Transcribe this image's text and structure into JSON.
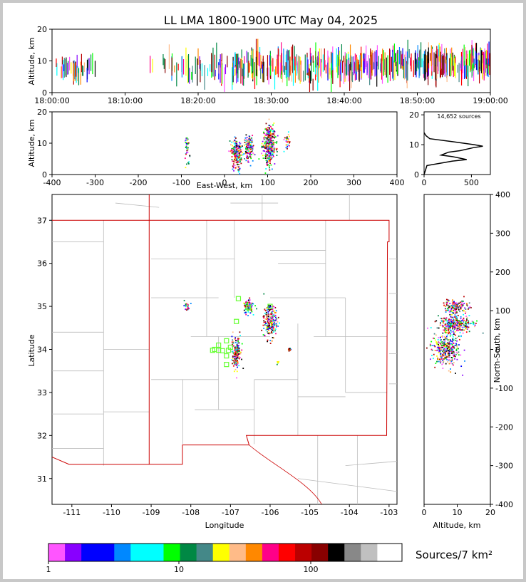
{
  "title": "LL LMA 1800-1900 UTC May 04, 2025",
  "chart_data": [
    {
      "id": "altitude-time",
      "type": "scatter",
      "ylabel": "Altitude, km",
      "ylim": [
        0,
        20
      ],
      "yticks": [
        "0",
        "10",
        "20"
      ],
      "xticks": [
        "18:00:00",
        "18:10:00",
        "18:20:00",
        "18:30:00",
        "18:40:00",
        "18:50:00",
        "19:00:00"
      ],
      "x_minutes_range": [
        0,
        60
      ],
      "activity_bands": [
        {
          "x_start": 0,
          "x_end": 6,
          "density": 0.5,
          "alt_center": 7.5,
          "alt_spread": 2.2
        },
        {
          "x_start": 13,
          "x_end": 15.5,
          "density": 0.15,
          "alt_center": 9,
          "alt_spread": 1.5
        },
        {
          "x_start": 16,
          "x_end": 25,
          "density": 0.4,
          "alt_center": 7.5,
          "alt_spread": 3
        },
        {
          "x_start": 25,
          "x_end": 42,
          "density": 0.9,
          "alt_center": 8.5,
          "alt_spread": 3
        },
        {
          "x_start": 42,
          "x_end": 60,
          "density": 1.0,
          "alt_center": 9.0,
          "alt_spread": 2.8
        }
      ]
    },
    {
      "id": "altitude-eastwest",
      "type": "scatter",
      "xlabel": "East-West, km",
      "ylabel": "Altitude, km",
      "xlim": [
        -400,
        400
      ],
      "ylim": [
        0,
        20
      ],
      "xticks": [
        "-400",
        "-300",
        "-200",
        "-100",
        "0",
        "100",
        "200",
        "300",
        "400"
      ],
      "yticks": [
        "0",
        "10",
        "20"
      ],
      "clusters": [
        {
          "x": -87,
          "y": 9,
          "sx": 3,
          "sy": 2,
          "n": 40
        },
        {
          "x": 28,
          "y": 6.5,
          "sx": 6,
          "sy": 2.5,
          "n": 220
        },
        {
          "x": 57,
          "y": 8.5,
          "sx": 5,
          "sy": 2.0,
          "n": 140
        },
        {
          "x": 103,
          "y": 9.5,
          "sx": 7,
          "sy": 3.0,
          "n": 360
        },
        {
          "x": 145,
          "y": 10,
          "sx": 3,
          "sy": 1.5,
          "n": 30
        }
      ]
    },
    {
      "id": "altitude-histogram",
      "type": "line",
      "annotation": "14,652 sources",
      "xlim": [
        0,
        700
      ],
      "ylim": [
        0,
        21
      ],
      "xticks": [
        "0",
        "500"
      ],
      "yticks": [
        "0",
        "10",
        "20"
      ],
      "points": [
        [
          0,
          0
        ],
        [
          30,
          3
        ],
        [
          210,
          4
        ],
        [
          300,
          4.5
        ],
        [
          450,
          5
        ],
        [
          300,
          6
        ],
        [
          180,
          6.5
        ],
        [
          260,
          7.5
        ],
        [
          380,
          8
        ],
        [
          520,
          9
        ],
        [
          620,
          9.5
        ],
        [
          530,
          10
        ],
        [
          300,
          11
        ],
        [
          60,
          12
        ],
        [
          20,
          13
        ],
        [
          0,
          14
        ]
      ]
    },
    {
      "id": "plan-view-map",
      "type": "scatter",
      "xlabel": "Longitude",
      "ylabel": "Latitude",
      "xlim": [
        -111.5,
        -102.8
      ],
      "ylim": [
        30.4,
        37.6
      ],
      "xticks": [
        "-111",
        "-110",
        "-109",
        "-108",
        "-107",
        "-106",
        "-105",
        "-104",
        "-103"
      ],
      "yticks": [
        "31",
        "32",
        "33",
        "34",
        "35",
        "36",
        "37"
      ],
      "clusters": [
        {
          "lon": -108.1,
          "lat": 35.0,
          "slon": 0.04,
          "slat": 0.05,
          "n": 25
        },
        {
          "lon": -106.85,
          "lat": 33.95,
          "slon": 0.06,
          "slat": 0.18,
          "n": 160
        },
        {
          "lon": -106.55,
          "lat": 35.0,
          "slon": 0.07,
          "slat": 0.08,
          "n": 90
        },
        {
          "lon": -106.0,
          "lat": 34.65,
          "slon": 0.08,
          "slat": 0.18,
          "n": 220
        },
        {
          "lon": -105.5,
          "lat": 34.0,
          "slon": 0.03,
          "slat": 0.02,
          "n": 12
        },
        {
          "lon": -105.8,
          "lat": 33.7,
          "slon": 0.02,
          "slat": 0.02,
          "n": 6
        }
      ],
      "station_markers": [
        [
          -107.4,
          34.0
        ],
        [
          -107.3,
          34.1
        ],
        [
          -107.3,
          33.98
        ],
        [
          -107.2,
          33.97
        ],
        [
          -107.1,
          33.85
        ],
        [
          -107.1,
          34.2
        ],
        [
          -107.05,
          33.98
        ],
        [
          -107.1,
          33.65
        ],
        [
          -106.85,
          34.65
        ],
        [
          -106.8,
          35.18
        ],
        [
          -106.55,
          34.97
        ],
        [
          -106.0,
          35.0
        ],
        [
          -107.45,
          33.98
        ],
        [
          -107.0,
          34.05
        ]
      ],
      "colors": {
        "state_border": "#cc0000",
        "county_border": "#bbbbbb",
        "station": "#66ff33"
      }
    },
    {
      "id": "northsouth-altitude",
      "type": "scatter",
      "xlabel": "Altitude, km",
      "ylabel": "North-South, km",
      "xlim": [
        0,
        20
      ],
      "ylim": [
        -400,
        400
      ],
      "xticks": [
        "0",
        "10",
        "20"
      ],
      "yticks": [
        "-400",
        "-300",
        "-200",
        "-100",
        "0",
        "100",
        "200",
        "300",
        "400"
      ],
      "clusters": [
        {
          "x": 9.5,
          "y": 110,
          "sx": 1.8,
          "sy": 8,
          "n": 160
        },
        {
          "x": 9.5,
          "y": 65,
          "sx": 2.6,
          "sy": 10,
          "n": 300
        },
        {
          "x": 6.5,
          "y": 0,
          "sx": 2.0,
          "sy": 22,
          "n": 320
        }
      ]
    }
  ],
  "colorbar": {
    "label": "Sources/7 km²",
    "tick_labels": [
      "1",
      "10",
      "100"
    ],
    "colors": [
      "#ff55ff",
      "#8800ff",
      "#0000ff",
      "#0088ff",
      "#00ffff",
      "#00ff00",
      "#008844",
      "#448888",
      "#ffff00",
      "#ffbb88",
      "#ff8800",
      "#ff0088",
      "#ff0000",
      "#bb0000",
      "#880000",
      "#000000",
      "#888888",
      "#c0c0c0",
      "#ffffff"
    ]
  }
}
